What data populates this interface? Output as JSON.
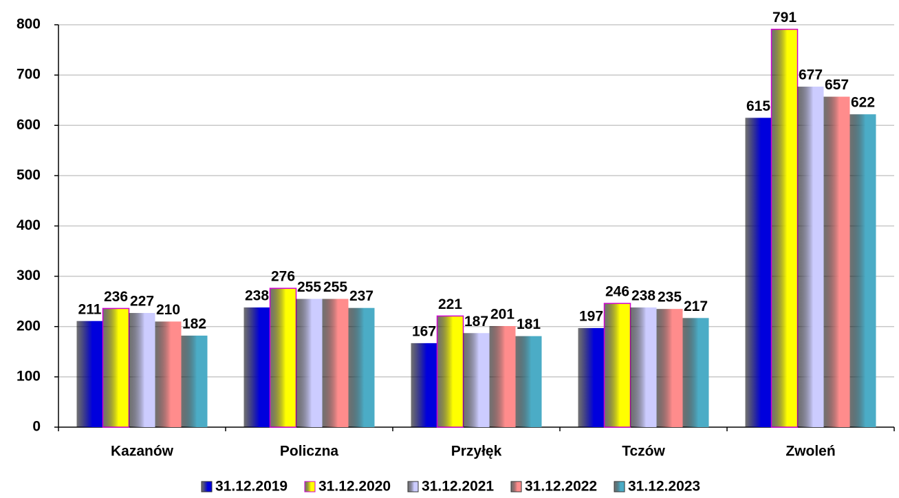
{
  "chart_data": {
    "type": "bar",
    "categories": [
      "Kazanów",
      "Policzna",
      "Przyłęk",
      "Tczów",
      "Zwoleń"
    ],
    "series": [
      {
        "name": "31.12.2019",
        "color": "#0000dd",
        "values": [
          211,
          238,
          167,
          197,
          615
        ]
      },
      {
        "name": "31.12.2020",
        "color": "#ffff00",
        "values": [
          236,
          276,
          221,
          246,
          791
        ]
      },
      {
        "name": "31.12.2021",
        "color": "#ccccff",
        "values": [
          227,
          255,
          187,
          238,
          677
        ]
      },
      {
        "name": "31.12.2022",
        "color": "#ff8c8c",
        "values": [
          210,
          255,
          201,
          235,
          657
        ]
      },
      {
        "name": "31.12.2023",
        "color": "#4bacc6",
        "values": [
          182,
          237,
          181,
          217,
          622
        ]
      }
    ],
    "ylim": [
      0,
      800
    ],
    "yticks": [
      0,
      100,
      200,
      300,
      400,
      500,
      600,
      700,
      800
    ],
    "grid": true,
    "legend": "bottom"
  }
}
